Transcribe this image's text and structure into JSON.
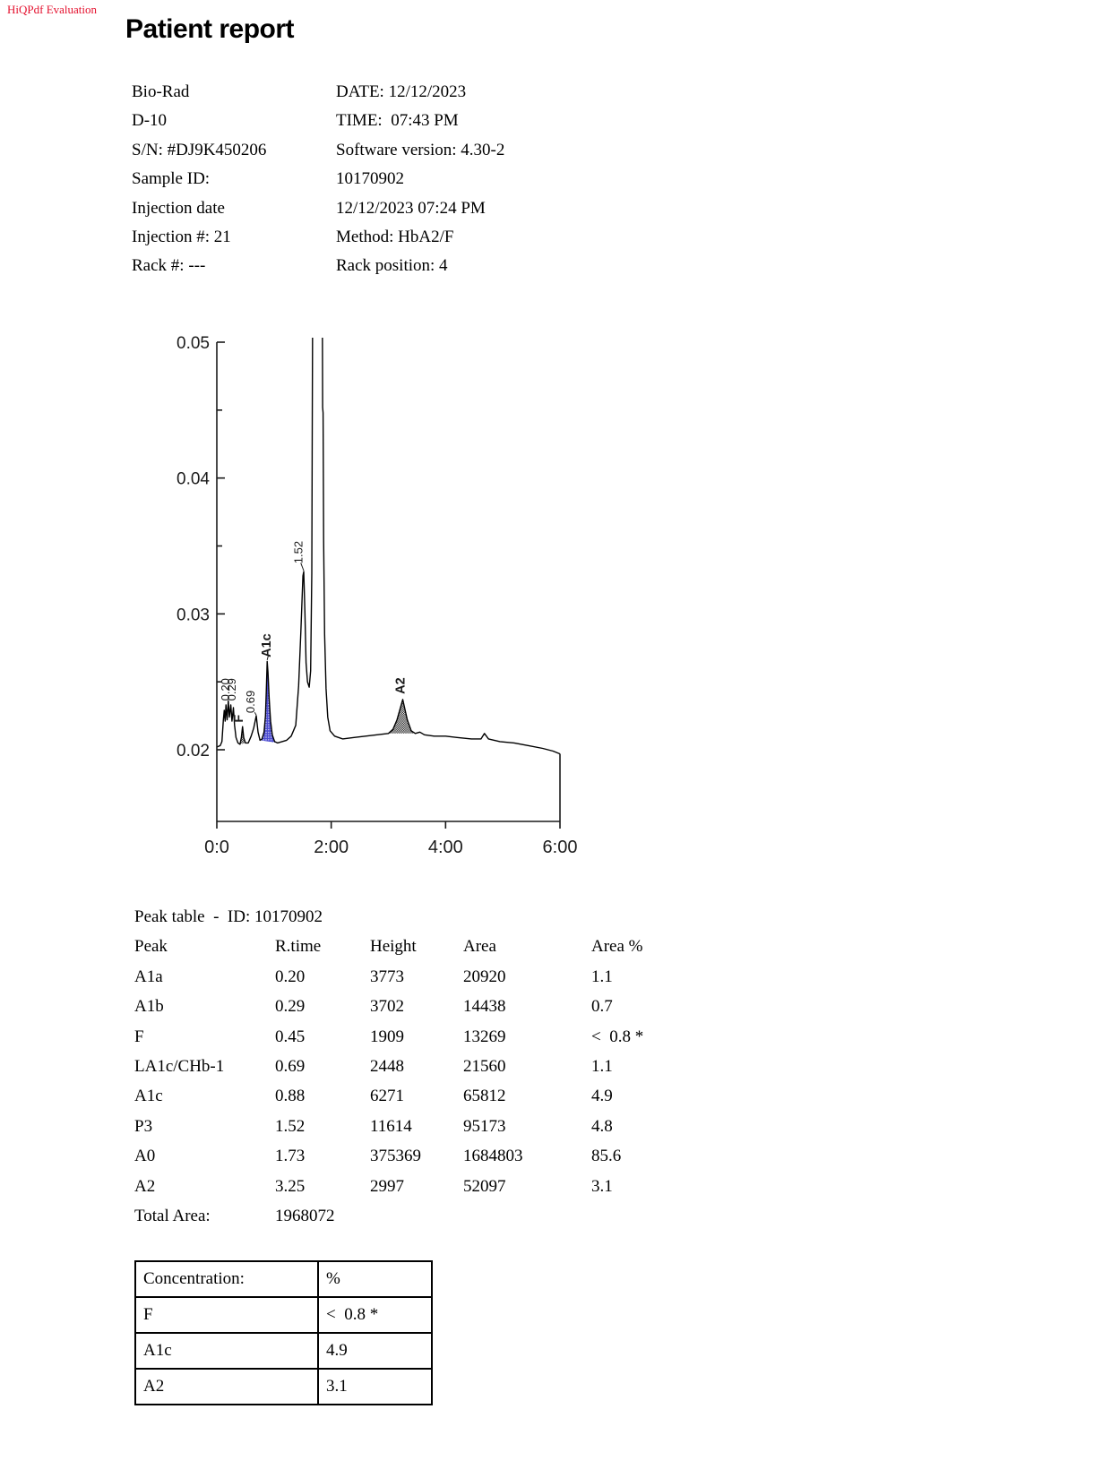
{
  "watermark": "HiQPdf Evaluation",
  "title": "Patient report",
  "info": {
    "rows": [
      {
        "l": "Bio-Rad",
        "r": "DATE: 12/12/2023"
      },
      {
        "l": "D-10",
        "r": "TIME:  07:43 PM"
      },
      {
        "l": "S/N: #DJ9K450206",
        "r": "Software version: 4.30-2"
      },
      {
        "l": "Sample ID:",
        "r": "10170902"
      },
      {
        "l": "Injection date",
        "r": "12/12/2023 07:24 PM"
      },
      {
        "l": "Injection #: 21",
        "r": "Method: HbA2/F"
      },
      {
        "l": "Rack #: ---",
        "r": "Rack position: 4"
      }
    ]
  },
  "chart_data": {
    "type": "line",
    "title": "",
    "xlabel": "",
    "ylabel": "",
    "x_ticks": [
      {
        "t": 0,
        "label": "0:0"
      },
      {
        "t": 2,
        "label": "2:00"
      },
      {
        "t": 4,
        "label": "4:00"
      },
      {
        "t": 6,
        "label": "6:00"
      }
    ],
    "y_ticks": [
      {
        "v": 0.02,
        "label": "0.02"
      },
      {
        "v": 0.03,
        "label": "0.03"
      },
      {
        "v": 0.04,
        "label": "0.04"
      },
      {
        "v": 0.05,
        "label": "0.05"
      }
    ],
    "y_minor_ticks": [
      0.025,
      0.035,
      0.045
    ],
    "xlim_minutes": [
      0,
      6
    ],
    "ylim": [
      0.0147,
      0.0503
    ],
    "grid": false,
    "colors": {
      "a1c_fill": "#4a4ad0",
      "hatch": "#111111",
      "trace": "#000000"
    },
    "trace": [
      [
        0.0,
        0.0202
      ],
      [
        0.06,
        0.0203
      ],
      [
        0.09,
        0.0206
      ],
      [
        0.115,
        0.0222
      ],
      [
        0.13,
        0.0229
      ],
      [
        0.145,
        0.0221
      ],
      [
        0.16,
        0.0233
      ],
      [
        0.18,
        0.0222
      ],
      [
        0.2,
        0.0236
      ],
      [
        0.22,
        0.0224
      ],
      [
        0.245,
        0.0233
      ],
      [
        0.265,
        0.0221
      ],
      [
        0.29,
        0.0231
      ],
      [
        0.31,
        0.0218
      ],
      [
        0.335,
        0.0209
      ],
      [
        0.37,
        0.0205
      ],
      [
        0.405,
        0.0204
      ],
      [
        0.43,
        0.0209
      ],
      [
        0.45,
        0.0217
      ],
      [
        0.47,
        0.0209
      ],
      [
        0.5,
        0.0205
      ],
      [
        0.55,
        0.0205
      ],
      [
        0.6,
        0.021
      ],
      [
        0.645,
        0.0216
      ],
      [
        0.69,
        0.0225
      ],
      [
        0.72,
        0.0213
      ],
      [
        0.755,
        0.0207
      ],
      [
        0.79,
        0.0208
      ],
      [
        0.825,
        0.0213
      ],
      [
        0.85,
        0.0225
      ],
      [
        0.865,
        0.0243
      ],
      [
        0.88,
        0.0265
      ],
      [
        0.895,
        0.0257
      ],
      [
        0.915,
        0.0238
      ],
      [
        0.94,
        0.0221
      ],
      [
        0.97,
        0.0211
      ],
      [
        1.01,
        0.0206
      ],
      [
        1.06,
        0.0205
      ],
      [
        1.14,
        0.0206
      ],
      [
        1.22,
        0.0207
      ],
      [
        1.3,
        0.021
      ],
      [
        1.38,
        0.0218
      ],
      [
        1.43,
        0.0247
      ],
      [
        1.47,
        0.0287
      ],
      [
        1.505,
        0.0328
      ],
      [
        1.52,
        0.0331
      ],
      [
        1.54,
        0.0302
      ],
      [
        1.56,
        0.0264
      ],
      [
        1.585,
        0.025
      ],
      [
        1.615,
        0.0246
      ],
      [
        1.64,
        0.0258
      ],
      [
        1.66,
        0.033
      ],
      [
        1.675,
        0.052
      ],
      [
        1.69,
        0.09
      ],
      [
        1.7,
        0.12
      ],
      [
        1.83,
        0.12
      ],
      [
        1.842,
        0.056
      ],
      [
        1.85,
        0.0452
      ],
      [
        1.858,
        0.0448
      ],
      [
        1.868,
        0.0355
      ],
      [
        1.885,
        0.0285
      ],
      [
        1.91,
        0.0245
      ],
      [
        1.94,
        0.0224
      ],
      [
        1.98,
        0.0214
      ],
      [
        2.06,
        0.021
      ],
      [
        2.2,
        0.0208
      ],
      [
        2.4,
        0.0209
      ],
      [
        2.6,
        0.021
      ],
      [
        2.8,
        0.0211
      ],
      [
        3.0,
        0.0212
      ],
      [
        3.08,
        0.0215
      ],
      [
        3.15,
        0.0222
      ],
      [
        3.25,
        0.0237
      ],
      [
        3.33,
        0.0222
      ],
      [
        3.4,
        0.0214
      ],
      [
        3.47,
        0.0212
      ],
      [
        3.55,
        0.0213
      ],
      [
        3.63,
        0.0211
      ],
      [
        3.8,
        0.021
      ],
      [
        4.0,
        0.021
      ],
      [
        4.2,
        0.0209
      ],
      [
        4.45,
        0.0208
      ],
      [
        4.62,
        0.0208
      ],
      [
        4.68,
        0.0212
      ],
      [
        4.75,
        0.0208
      ],
      [
        4.95,
        0.0206
      ],
      [
        5.2,
        0.0205
      ],
      [
        5.45,
        0.0203
      ],
      [
        5.7,
        0.0201
      ],
      [
        5.88,
        0.0199
      ],
      [
        6.0,
        0.0197
      ]
    ],
    "fills": [
      {
        "name": "F",
        "from": 0.405,
        "to": 0.5,
        "pattern": "check"
      },
      {
        "name": "A1c",
        "from": 0.755,
        "to": 1.06,
        "pattern": "blue"
      },
      {
        "name": "A2",
        "from": 3.0,
        "to": 3.47,
        "pattern": "check"
      }
    ],
    "peak_labels": [
      {
        "text": "0.20",
        "t": 0.22,
        "abs": 0.0236,
        "bold": false
      },
      {
        "text": "0.29",
        "t": 0.33,
        "abs": 0.0236,
        "bold": false
      },
      {
        "text": "F",
        "t": 0.455,
        "abs": 0.022,
        "bold": true
      },
      {
        "text": "0.69",
        "t": 0.655,
        "abs": 0.0227,
        "bold": false
      },
      {
        "text": "A1c",
        "t": 0.94,
        "abs": 0.0268,
        "bold": true
      },
      {
        "text": "1.52",
        "t": 1.5,
        "abs": 0.0337,
        "bold": false
      },
      {
        "text": "A2",
        "t": 3.28,
        "abs": 0.0241,
        "bold": true
      }
    ],
    "leaders": [
      {
        "from": [
          0.69,
          0.02255
        ],
        "to": [
          0.662,
          0.02275
        ]
      },
      {
        "from": [
          0.88,
          0.0266
        ],
        "to": [
          0.898,
          0.0269
        ]
      },
      {
        "from": [
          1.522,
          0.03315
        ],
        "to": [
          1.468,
          0.03375
        ]
      }
    ]
  },
  "peak_table": {
    "title": "Peak table  -  ID: 10170902",
    "columns": [
      "Peak",
      "R.time",
      "Height",
      "Area",
      "Area %"
    ],
    "rows": [
      {
        "peak": "A1a",
        "rtime": "0.20",
        "height": "3773",
        "area": "20920",
        "areapct": "1.1"
      },
      {
        "peak": "A1b",
        "rtime": "0.29",
        "height": "3702",
        "area": "14438",
        "areapct": "0.7"
      },
      {
        "peak": "F",
        "rtime": "0.45",
        "height": "1909",
        "area": "13269",
        "areapct": "<  0.8 *"
      },
      {
        "peak": "LA1c/CHb-1",
        "rtime": "0.69",
        "height": "2448",
        "area": "21560",
        "areapct": "1.1"
      },
      {
        "peak": "A1c",
        "rtime": "0.88",
        "height": "6271",
        "area": "65812",
        "areapct": "4.9"
      },
      {
        "peak": "P3",
        "rtime": "1.52",
        "height": "11614",
        "area": "95173",
        "areapct": "4.8"
      },
      {
        "peak": "A0",
        "rtime": "1.73",
        "height": "375369",
        "area": "1684803",
        "areapct": "85.6"
      },
      {
        "peak": "A2",
        "rtime": "3.25",
        "height": "2997",
        "area": "52097",
        "areapct": "3.1"
      }
    ],
    "total_label": "Total Area:",
    "total_value": "1968072"
  },
  "conc": {
    "header": {
      "label": "Concentration:",
      "unit": "%"
    },
    "rows": [
      {
        "label": "F",
        "value": "<  0.8 *"
      },
      {
        "label": "A1c",
        "value": "4.9"
      },
      {
        "label": "A2",
        "value": "3.1"
      }
    ]
  }
}
